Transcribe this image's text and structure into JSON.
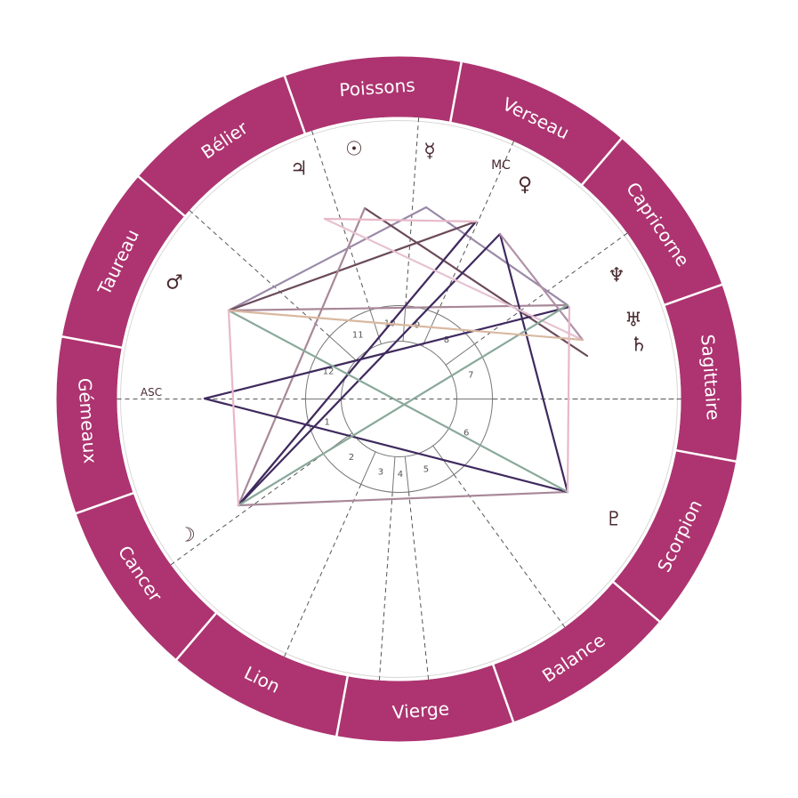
{
  "wheel": {
    "colors": {
      "zodiac_band": "#ad3470",
      "divider": "#ffffff",
      "house_line": "#555555",
      "inner_ring": "#777777",
      "glyph": "#4a2a30"
    },
    "signs": [
      {
        "name": "Poissons"
      },
      {
        "name": "Verseau"
      },
      {
        "name": "Capricorne"
      },
      {
        "name": "Sagittaire"
      },
      {
        "name": "Scorpion"
      },
      {
        "name": "Balance"
      },
      {
        "name": "Vierge"
      },
      {
        "name": "Lion"
      },
      {
        "name": "Cancer"
      },
      {
        "name": "Gémeaux"
      },
      {
        "name": "Taureau"
      },
      {
        "name": "Bélier"
      }
    ],
    "house_numbers": [
      "1",
      "2",
      "3",
      "4",
      "5",
      "6",
      "7",
      "8",
      "9",
      "10",
      "11",
      "12"
    ],
    "angles": {
      "ascendant": "ASC",
      "midheaven": "MC"
    },
    "planets": [
      {
        "id": "sun",
        "glyph": "☉",
        "icon": "sun-icon"
      },
      {
        "id": "mercury",
        "glyph": "☿",
        "icon": "mercury-icon"
      },
      {
        "id": "venus",
        "glyph": "♀",
        "icon": "venus-icon"
      },
      {
        "id": "jupiter",
        "glyph": "♃",
        "icon": "jupiter-icon"
      },
      {
        "id": "mars",
        "glyph": "♂",
        "icon": "mars-icon"
      },
      {
        "id": "neptune",
        "glyph": "♆",
        "icon": "neptune-icon"
      },
      {
        "id": "uranus",
        "glyph": "♅",
        "icon": "uranus-icon"
      },
      {
        "id": "saturn",
        "glyph": "♄",
        "icon": "saturn-icon"
      },
      {
        "id": "pluto",
        "glyph": "♇",
        "icon": "pluto-icon"
      },
      {
        "id": "moon",
        "glyph": "☽",
        "icon": "moon-icon"
      }
    ],
    "aspect_colors": [
      "#9a8aa8",
      "#6b4a5a",
      "#a88898",
      "#3f2a5e",
      "#e6c2d0",
      "#8aa99a",
      "#d9b8a0",
      "#e8b8c8",
      "#b090a8"
    ]
  }
}
